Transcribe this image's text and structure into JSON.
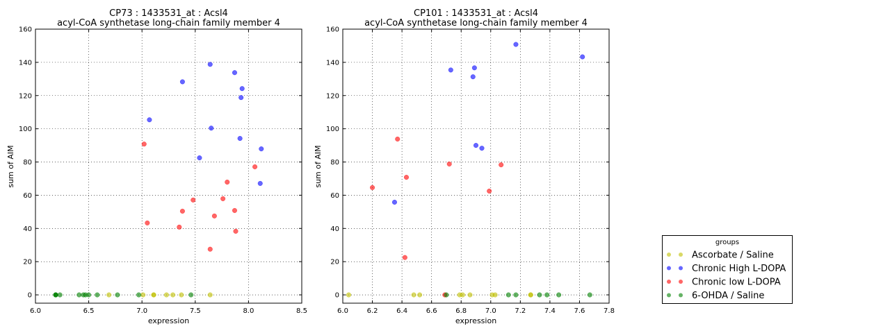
{
  "colors": {
    "Ascorbate / Saline": "#bfbf00",
    "Chronic High L-DOPA": "#0000ff",
    "Chronic low L-DOPA": "#ff0000",
    "6-OHDA / Saline": "#008000"
  },
  "legend": {
    "title": "groups",
    "entries": [
      "Ascorbate / Saline",
      "Chronic High L-DOPA",
      "Chronic low L-DOPA",
      "6-OHDA / Saline"
    ],
    "placement": "lower-right outside"
  },
  "chart_data": [
    {
      "type": "scatter",
      "title": "CP73 : 1433531_at : Acsl4",
      "subtitle": "acyl-CoA synthetase long-chain family member 4",
      "xlabel": "expression",
      "ylabel": "sum of AIM",
      "xlim": [
        6.0,
        8.5
      ],
      "ylim": [
        -5,
        160
      ],
      "xticks": [
        "6.0",
        "6.5",
        "7.0",
        "7.5",
        "8.0",
        "8.5"
      ],
      "yticks": [
        "0",
        "20",
        "40",
        "60",
        "80",
        "100",
        "120",
        "140",
        "160"
      ],
      "grid": true,
      "series": [
        {
          "name": "Ascorbate / Saline",
          "x": [
            6.69,
            7.01,
            7.11,
            7.11,
            7.23,
            7.29,
            7.37,
            7.64
          ],
          "y": [
            0,
            0,
            0,
            0,
            0,
            0,
            0,
            0
          ]
        },
        {
          "name": "Chronic High L-DOPA",
          "x": [
            7.07,
            7.38,
            7.64,
            7.65,
            7.54,
            7.87,
            7.94,
            7.93,
            7.92,
            8.12,
            8.11
          ],
          "y": [
            105.4,
            128.3,
            138.8,
            100.4,
            82.5,
            133.8,
            124.2,
            118.8,
            94.2,
            87.9,
            67.1
          ]
        },
        {
          "name": "Chronic low L-DOPA",
          "x": [
            7.02,
            7.05,
            7.38,
            7.35,
            7.48,
            7.64,
            7.68,
            7.76,
            7.8,
            7.87,
            7.88,
            8.06
          ],
          "y": [
            90.8,
            43.3,
            50.4,
            40.8,
            57.1,
            27.5,
            47.5,
            57.9,
            67.9,
            50.8,
            38.3,
            77.1
          ]
        },
        {
          "name": "6-OHDA / Saline",
          "x": [
            6.19,
            6.19,
            6.19,
            6.23,
            6.41,
            6.45,
            6.47,
            6.5,
            6.58,
            6.77,
            6.97,
            7.46
          ],
          "y": [
            0,
            0,
            0,
            0,
            0,
            0,
            0,
            0,
            0,
            0,
            0,
            0
          ]
        }
      ]
    },
    {
      "type": "scatter",
      "title": "CP101 : 1433531_at : Acsl4",
      "subtitle": "acyl-CoA synthetase long-chain family member 4",
      "xlabel": "expression",
      "ylabel": "sum of AIM",
      "xlim": [
        6.0,
        7.8
      ],
      "ylim": [
        -5,
        160
      ],
      "xticks": [
        "6.0",
        "6.2",
        "6.4",
        "6.6",
        "6.8",
        "7.0",
        "7.2",
        "7.4",
        "7.6",
        "7.8"
      ],
      "yticks": [
        "0",
        "20",
        "40",
        "60",
        "80",
        "100",
        "120",
        "140",
        "160"
      ],
      "grid": true,
      "series": [
        {
          "name": "Ascorbate / Saline",
          "x": [
            6.04,
            6.48,
            6.52,
            6.79,
            6.81,
            6.86,
            7.01,
            7.03,
            7.27,
            7.27
          ],
          "y": [
            0,
            0,
            0,
            0,
            0,
            0,
            0,
            0,
            0,
            0
          ]
        },
        {
          "name": "Chronic High L-DOPA",
          "x": [
            7.17,
            7.62,
            6.73,
            6.89,
            6.88,
            6.9,
            6.94,
            6.35
          ],
          "y": [
            150.8,
            143.3,
            135.4,
            136.7,
            131.3,
            90.0,
            88.3,
            55.8
          ]
        },
        {
          "name": "Chronic low L-DOPA",
          "x": [
            6.37,
            6.2,
            6.43,
            6.42,
            6.72,
            7.07,
            6.99,
            6.69
          ],
          "y": [
            93.8,
            64.6,
            70.8,
            22.5,
            78.8,
            78.3,
            62.5,
            0
          ]
        },
        {
          "name": "6-OHDA / Saline",
          "x": [
            6.7,
            7.12,
            7.17,
            7.33,
            7.38,
            7.46,
            7.67
          ],
          "y": [
            0,
            0,
            0,
            0,
            0,
            0,
            0
          ]
        }
      ]
    }
  ]
}
